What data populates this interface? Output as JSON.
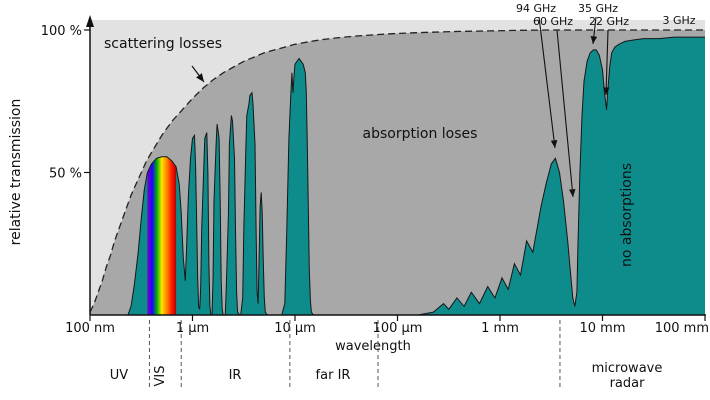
{
  "chart_data": {
    "type": "area",
    "title": "",
    "xlabel": "wavelength",
    "ylabel": "relative transmission",
    "x_scale": "log10_meters",
    "xlim_log10_m": [
      -7,
      -1
    ],
    "ylim": [
      0,
      100
    ],
    "x_ticks": [
      {
        "label": "100 nm",
        "log10_m": -7
      },
      {
        "label": "1 µm",
        "log10_m": -6
      },
      {
        "label": "10 µm",
        "log10_m": -5
      },
      {
        "label": "100 µm",
        "log10_m": -4
      },
      {
        "label": "1 mm",
        "log10_m": -3
      },
      {
        "label": "10 mm",
        "log10_m": -2
      },
      {
        "label": "100 mm",
        "log10_m": -1
      }
    ],
    "y_ticks": [
      {
        "label": "100 %",
        "value": 100
      },
      {
        "label": "50 %",
        "value": 50
      }
    ],
    "annotations": {
      "scattering": "scattering losses",
      "absorption": "absorption loses",
      "no_absorption": "no absorptions"
    },
    "ghz_annotations": [
      {
        "label": "94 GHz"
      },
      {
        "label": "60 GHz"
      },
      {
        "label": "35 GHz"
      },
      {
        "label": "22 GHz"
      },
      {
        "label": "3 GHz"
      }
    ],
    "bands": [
      {
        "label": "UV"
      },
      {
        "label": "VIS",
        "rotated": true
      },
      {
        "label": "IR"
      },
      {
        "label": "far IR"
      },
      {
        "label": "microwave",
        "line2": "radar"
      }
    ],
    "band_separators_log10_m": [
      -6.42,
      -6.11,
      -5.05,
      -4.19,
      -2.415
    ],
    "visible_spectrum": {
      "from_log10_m": -6.44,
      "to_log10_m": -6.16,
      "colors": [
        "#7d00c8",
        "#1e00ff",
        "#00b400",
        "#ffe400",
        "#ff8c00",
        "#ff2000",
        "#b40000"
      ]
    },
    "colors": {
      "teal": "#0e8c8c",
      "light_gray": "#e2e2e2",
      "mid_gray": "#a8a8a8",
      "outline": "#161616"
    },
    "series": [
      {
        "name": "scattering-envelope",
        "style": "dashed-outline",
        "points": [
          [
            -7.0,
            1
          ],
          [
            -6.96,
            4
          ],
          [
            -6.92,
            8
          ],
          [
            -6.88,
            12
          ],
          [
            -6.84,
            17
          ],
          [
            -6.8,
            21
          ],
          [
            -6.76,
            26
          ],
          [
            -6.72,
            30
          ],
          [
            -6.68,
            34
          ],
          [
            -6.64,
            38
          ],
          [
            -6.6,
            42
          ],
          [
            -6.55,
            46
          ],
          [
            -6.5,
            50
          ],
          [
            -6.45,
            54
          ],
          [
            -6.4,
            57
          ],
          [
            -6.35,
            60
          ],
          [
            -6.3,
            63
          ],
          [
            -6.25,
            65.5
          ],
          [
            -6.2,
            68
          ],
          [
            -6.15,
            70
          ],
          [
            -6.1,
            72
          ],
          [
            -6.05,
            74
          ],
          [
            -6.0,
            76
          ],
          [
            -5.9,
            79.5
          ],
          [
            -5.8,
            82.5
          ],
          [
            -5.7,
            85
          ],
          [
            -5.6,
            87
          ],
          [
            -5.5,
            89
          ],
          [
            -5.4,
            90.5
          ],
          [
            -5.3,
            92
          ],
          [
            -5.2,
            93
          ],
          [
            -5.1,
            94
          ],
          [
            -5.0,
            95
          ],
          [
            -4.85,
            96
          ],
          [
            -4.7,
            96.8
          ],
          [
            -4.55,
            97.4
          ],
          [
            -4.4,
            97.9
          ],
          [
            -4.2,
            98.4
          ],
          [
            -4.0,
            98.8
          ],
          [
            -3.7,
            99.2
          ],
          [
            -3.4,
            99.5
          ],
          [
            -3.1,
            99.7
          ],
          [
            -2.8,
            99.9
          ],
          [
            -2.5,
            100
          ],
          [
            -2.0,
            100
          ],
          [
            -1.5,
            100
          ],
          [
            -1.0,
            100
          ]
        ]
      },
      {
        "name": "atmospheric-transmission",
        "style": "filled",
        "points": [
          [
            -6.63,
            0
          ],
          [
            -6.6,
            3
          ],
          [
            -6.57,
            10
          ],
          [
            -6.53,
            22
          ],
          [
            -6.5,
            34
          ],
          [
            -6.47,
            44
          ],
          [
            -6.44,
            50
          ],
          [
            -6.4,
            53
          ],
          [
            -6.35,
            55
          ],
          [
            -6.3,
            55.5
          ],
          [
            -6.25,
            55.5
          ],
          [
            -6.2,
            54
          ],
          [
            -6.16,
            52
          ],
          [
            -6.13,
            46
          ],
          [
            -6.11,
            36
          ],
          [
            -6.09,
            20
          ],
          [
            -6.07,
            12
          ],
          [
            -6.06,
            22
          ],
          [
            -6.04,
            42
          ],
          [
            -6.02,
            55
          ],
          [
            -6.0,
            62
          ],
          [
            -5.98,
            63
          ],
          [
            -5.97,
            52
          ],
          [
            -5.96,
            34
          ],
          [
            -5.95,
            14
          ],
          [
            -5.94,
            3
          ],
          [
            -5.93,
            2
          ],
          [
            -5.92,
            10
          ],
          [
            -5.91,
            30
          ],
          [
            -5.89,
            52
          ],
          [
            -5.88,
            62
          ],
          [
            -5.86,
            64
          ],
          [
            -5.85,
            50
          ],
          [
            -5.84,
            18
          ],
          [
            -5.83,
            3
          ],
          [
            -5.82,
            0
          ],
          [
            -5.81,
            0
          ],
          [
            -5.8,
            12
          ],
          [
            -5.79,
            40
          ],
          [
            -5.77,
            60
          ],
          [
            -5.76,
            67
          ],
          [
            -5.74,
            62
          ],
          [
            -5.73,
            40
          ],
          [
            -5.72,
            12
          ],
          [
            -5.71,
            2
          ],
          [
            -5.7,
            0
          ],
          [
            -5.68,
            0
          ],
          [
            -5.67,
            10
          ],
          [
            -5.65,
            35
          ],
          [
            -5.64,
            60
          ],
          [
            -5.62,
            70
          ],
          [
            -5.61,
            68
          ],
          [
            -5.59,
            55
          ],
          [
            -5.58,
            30
          ],
          [
            -5.57,
            8
          ],
          [
            -5.56,
            1
          ],
          [
            -5.54,
            0
          ],
          [
            -5.53,
            0
          ],
          [
            -5.51,
            6
          ],
          [
            -5.5,
            30
          ],
          [
            -5.48,
            58
          ],
          [
            -5.47,
            70
          ],
          [
            -5.45,
            74
          ],
          [
            -5.44,
            77
          ],
          [
            -5.42,
            78
          ],
          [
            -5.41,
            74
          ],
          [
            -5.39,
            60
          ],
          [
            -5.38,
            30
          ],
          [
            -5.37,
            8
          ],
          [
            -5.36,
            4
          ],
          [
            -5.35,
            20
          ],
          [
            -5.34,
            38
          ],
          [
            -5.33,
            43
          ],
          [
            -5.32,
            36
          ],
          [
            -5.31,
            20
          ],
          [
            -5.3,
            6
          ],
          [
            -5.29,
            1
          ],
          [
            -5.27,
            0
          ],
          [
            -5.2,
            0
          ],
          [
            -5.13,
            0
          ],
          [
            -5.1,
            4
          ],
          [
            -5.08,
            30
          ],
          [
            -5.06,
            62
          ],
          [
            -5.04,
            78
          ],
          [
            -5.03,
            85
          ],
          [
            -5.02,
            78
          ],
          [
            -5.01,
            84
          ],
          [
            -5.0,
            88
          ],
          [
            -4.98,
            89
          ],
          [
            -4.96,
            90
          ],
          [
            -4.94,
            89
          ],
          [
            -4.92,
            88
          ],
          [
            -4.9,
            85
          ],
          [
            -4.89,
            78
          ],
          [
            -4.88,
            60
          ],
          [
            -4.87,
            38
          ],
          [
            -4.86,
            16
          ],
          [
            -4.85,
            5
          ],
          [
            -4.84,
            1
          ],
          [
            -4.82,
            0
          ],
          [
            -4.5,
            0
          ],
          [
            -4.0,
            0
          ],
          [
            -3.8,
            0
          ],
          [
            -3.65,
            1
          ],
          [
            -3.55,
            4
          ],
          [
            -3.5,
            2
          ],
          [
            -3.42,
            6
          ],
          [
            -3.35,
            3
          ],
          [
            -3.28,
            8
          ],
          [
            -3.2,
            4
          ],
          [
            -3.12,
            10
          ],
          [
            -3.05,
            6
          ],
          [
            -2.98,
            13
          ],
          [
            -2.92,
            9
          ],
          [
            -2.86,
            18
          ],
          [
            -2.8,
            14
          ],
          [
            -2.74,
            26
          ],
          [
            -2.68,
            22
          ],
          [
            -2.6,
            38
          ],
          [
            -2.55,
            46
          ],
          [
            -2.5,
            53
          ],
          [
            -2.46,
            55
          ],
          [
            -2.42,
            50
          ],
          [
            -2.38,
            40
          ],
          [
            -2.34,
            26
          ],
          [
            -2.31,
            14
          ],
          [
            -2.29,
            6
          ],
          [
            -2.27,
            3
          ],
          [
            -2.25,
            8
          ],
          [
            -2.24,
            24
          ],
          [
            -2.22,
            50
          ],
          [
            -2.2,
            70
          ],
          [
            -2.18,
            82
          ],
          [
            -2.15,
            89
          ],
          [
            -2.12,
            92
          ],
          [
            -2.09,
            93
          ],
          [
            -2.06,
            93
          ],
          [
            -2.03,
            91
          ],
          [
            -2.0,
            86
          ],
          [
            -1.98,
            78
          ],
          [
            -1.96,
            72
          ],
          [
            -1.95,
            78
          ],
          [
            -1.93,
            87
          ],
          [
            -1.91,
            92
          ],
          [
            -1.88,
            94
          ],
          [
            -1.84,
            95
          ],
          [
            -1.78,
            96
          ],
          [
            -1.7,
            96.5
          ],
          [
            -1.6,
            97
          ],
          [
            -1.45,
            97
          ],
          [
            -1.3,
            97.5
          ],
          [
            -1.15,
            97.5
          ],
          [
            -1.0,
            97.5
          ]
        ]
      }
    ]
  }
}
